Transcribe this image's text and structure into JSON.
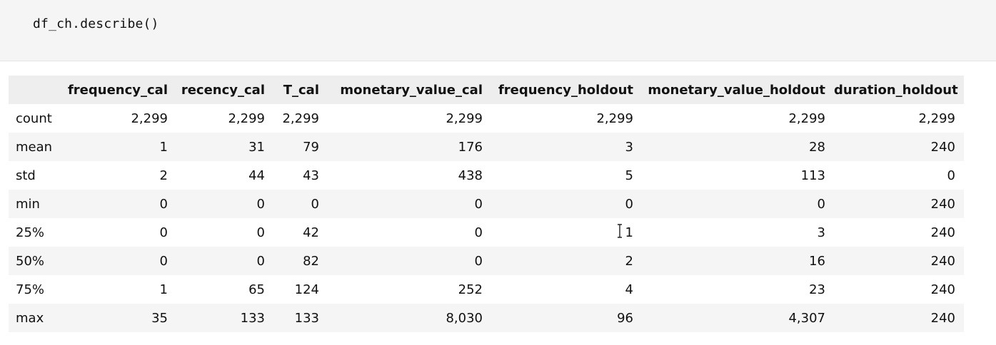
{
  "code_cell": {
    "code": "df_ch.describe()"
  },
  "table": {
    "columns": [
      "frequency_cal",
      "recency_cal",
      "T_cal",
      "monetary_value_cal",
      "frequency_holdout",
      "monetary_value_holdout",
      "duration_holdout"
    ],
    "rows": [
      {
        "label": "count",
        "values": [
          "2,299",
          "2,299",
          "2,299",
          "2,299",
          "2,299",
          "2,299",
          "2,299"
        ]
      },
      {
        "label": "mean",
        "values": [
          "1",
          "31",
          "79",
          "176",
          "3",
          "28",
          "240"
        ]
      },
      {
        "label": "std",
        "values": [
          "2",
          "44",
          "43",
          "438",
          "5",
          "113",
          "0"
        ]
      },
      {
        "label": "min",
        "values": [
          "0",
          "0",
          "0",
          "0",
          "0",
          "0",
          "240"
        ]
      },
      {
        "label": "25%",
        "values": [
          "0",
          "0",
          "42",
          "0",
          "1",
          "3",
          "240"
        ]
      },
      {
        "label": "50%",
        "values": [
          "0",
          "0",
          "82",
          "0",
          "2",
          "16",
          "240"
        ]
      },
      {
        "label": "75%",
        "values": [
          "1",
          "65",
          "124",
          "252",
          "4",
          "23",
          "240"
        ]
      },
      {
        "label": "max",
        "values": [
          "35",
          "133",
          "133",
          "8,030",
          "96",
          "4,307",
          "240"
        ]
      }
    ]
  },
  "cursor": {
    "icon": "text-cursor-icon"
  }
}
